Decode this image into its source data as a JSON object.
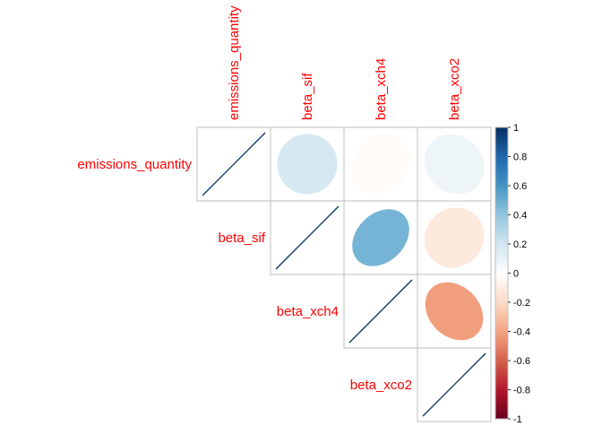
{
  "chart_data": {
    "type": "heatmap",
    "style": "correlation-ellipse-upper",
    "variables": [
      "emissions_quantity",
      "beta_sif",
      "beta_xch4",
      "beta_xco2"
    ],
    "matrix": [
      [
        1.0,
        0.18,
        -0.02,
        0.08
      ],
      [
        0.18,
        1.0,
        0.47,
        -0.12
      ],
      [
        -0.02,
        0.47,
        1.0,
        -0.42
      ],
      [
        0.08,
        -0.12,
        -0.42,
        1.0
      ]
    ],
    "colorbar": {
      "range": [
        -1,
        1
      ],
      "ticks": [
        "1",
        "0.8",
        "0.6",
        "0.4",
        "0.2",
        "0",
        "-0.2",
        "-0.4",
        "-0.6",
        "-0.8",
        "-1"
      ],
      "tick_values": [
        1,
        0.8,
        0.6,
        0.4,
        0.2,
        0,
        -0.2,
        -0.4,
        -0.6,
        -0.8,
        -1
      ],
      "palette": [
        "#67001F",
        "#B2182B",
        "#D6604D",
        "#F4A582",
        "#FDDBC7",
        "#FFFFFF",
        "#D1E5F0",
        "#92C5DE",
        "#4393C3",
        "#2166AC",
        "#053061"
      ]
    },
    "label_color": "#FF0000",
    "grid_color": "#BEBEBE",
    "legend_position": "right"
  }
}
